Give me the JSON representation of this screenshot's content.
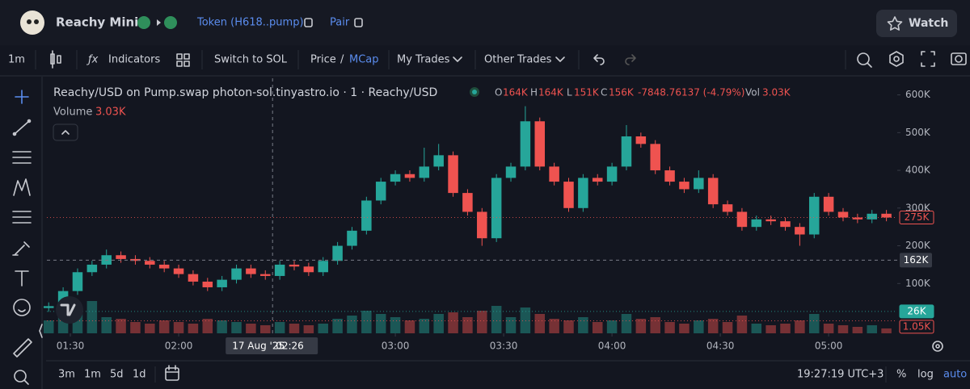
{
  "header": {
    "name": "Reachy Mini",
    "token": "Token (H618..pump)",
    "pair": "Pair",
    "watch": "Watch"
  },
  "toolbar": {
    "interval": "1m",
    "indicators": "Indicators",
    "switch": "Switch to SOL",
    "price": "Price",
    "slash": "/",
    "mcap": "MCap",
    "my_trades": "My Trades",
    "other_trades": "Other Trades"
  },
  "legend": {
    "title": "Reachy/USD on Pump.swap photon-sol.tinyastro.io · 1 · Reachy/USD",
    "o_label": "O",
    "o": "164K",
    "h_label": "H",
    "h": "164K",
    "l_label": "L",
    "l": "151K",
    "c_label": "C",
    "c": "156K",
    "change": "-7848.76137 (-4.79%)",
    "vol_label": "Vol",
    "vol": "3.03K",
    "volume_label": "Volume",
    "volume_value": "3.03K"
  },
  "footer": {
    "ranges": [
      "3m",
      "1m",
      "5d",
      "1d"
    ],
    "clock": "19:27:19 UTC+3",
    "percent": "%",
    "log": "log",
    "auto": "auto"
  },
  "chart_data": {
    "type": "candlestick",
    "up_color": "#26a69a",
    "down_color": "#ef5350",
    "x": [
      84,
      88,
      92,
      96,
      100,
      104,
      108,
      112,
      116,
      120,
      124,
      128,
      132,
      136,
      140,
      144,
      148,
      152,
      156,
      160,
      164,
      168,
      172,
      176,
      180,
      184,
      188,
      192,
      196,
      200,
      204,
      208,
      212,
      216,
      220,
      224,
      228,
      232,
      236,
      240,
      244,
      248,
      252,
      256,
      260,
      264,
      268,
      272,
      276,
      280,
      284,
      288,
      292,
      296,
      300,
      304,
      308,
      312,
      316
    ],
    "open": [
      35,
      40,
      80,
      130,
      150,
      175,
      165,
      160,
      150,
      140,
      125,
      105,
      90,
      110,
      140,
      125,
      120,
      150,
      145,
      130,
      160,
      200,
      240,
      320,
      370,
      390,
      380,
      410,
      440,
      340,
      290,
      220,
      380,
      410,
      530,
      410,
      370,
      300,
      380,
      370,
      410,
      490,
      470,
      400,
      370,
      350,
      380,
      310,
      290,
      250,
      270,
      265,
      250,
      230,
      330,
      290,
      275,
      270,
      285
    ],
    "high": [
      50,
      90,
      140,
      160,
      190,
      185,
      175,
      170,
      160,
      150,
      135,
      115,
      120,
      150,
      150,
      135,
      160,
      160,
      155,
      170,
      210,
      250,
      330,
      380,
      400,
      400,
      460,
      470,
      450,
      350,
      300,
      390,
      420,
      570,
      540,
      420,
      380,
      390,
      390,
      420,
      520,
      500,
      480,
      410,
      380,
      400,
      390,
      320,
      300,
      280,
      280,
      275,
      260,
      340,
      340,
      300,
      285,
      295,
      295
    ],
    "low": [
      25,
      30,
      70,
      120,
      140,
      155,
      150,
      140,
      130,
      115,
      95,
      80,
      80,
      100,
      115,
      110,
      110,
      135,
      120,
      120,
      150,
      190,
      230,
      310,
      360,
      370,
      370,
      400,
      330,
      280,
      200,
      210,
      370,
      400,
      400,
      360,
      290,
      290,
      360,
      360,
      400,
      460,
      390,
      360,
      340,
      340,
      300,
      280,
      240,
      240,
      255,
      240,
      200,
      220,
      280,
      265,
      260,
      260,
      265
    ],
    "close": [
      40,
      80,
      130,
      150,
      175,
      165,
      160,
      150,
      140,
      125,
      105,
      90,
      110,
      140,
      125,
      120,
      150,
      145,
      130,
      160,
      200,
      240,
      320,
      370,
      390,
      380,
      410,
      440,
      340,
      290,
      220,
      380,
      410,
      530,
      410,
      370,
      300,
      380,
      370,
      410,
      490,
      470,
      400,
      370,
      350,
      380,
      310,
      290,
      250,
      270,
      265,
      250,
      230,
      330,
      290,
      275,
      270,
      285,
      275
    ],
    "volume": [
      8,
      12,
      15,
      20,
      10,
      9,
      7,
      6,
      8,
      7,
      6,
      9,
      8,
      7,
      6,
      5,
      7,
      6,
      5,
      6,
      9,
      11,
      14,
      12,
      10,
      8,
      9,
      12,
      13,
      10,
      14,
      17,
      10,
      16,
      12,
      9,
      8,
      10,
      7,
      8,
      12,
      9,
      10,
      7,
      6,
      8,
      9,
      7,
      11,
      6,
      5,
      6,
      8,
      12,
      6,
      5,
      4,
      5,
      3.03
    ],
    "xlim": [
      83.5,
      319
    ],
    "xticks": [
      {
        "value": 90,
        "label": "01:30"
      },
      {
        "value": 120,
        "label": "02:00"
      },
      {
        "value": 180,
        "label": "03:00"
      },
      {
        "value": 210,
        "label": "03:30"
      },
      {
        "value": 240,
        "label": "04:00"
      },
      {
        "value": 270,
        "label": "04:30"
      },
      {
        "value": 300,
        "label": "05:00"
      }
    ],
    "ylim": [
      -32,
      644
    ],
    "yticks": [
      {
        "value": 100,
        "label": "100K"
      },
      {
        "value": 200,
        "label": "200K"
      },
      {
        "value": 300,
        "label": "300K"
      },
      {
        "value": 400,
        "label": "400K"
      },
      {
        "value": 500,
        "label": "500K"
      },
      {
        "value": 600,
        "label": "600K"
      }
    ],
    "y2lim": [
      0,
      30
    ],
    "grid": false,
    "price_markers": [
      {
        "value": 275,
        "label": "275K",
        "color": "#ef5350"
      },
      {
        "value": 26,
        "label": "26K",
        "color": "#26a69a"
      },
      {
        "value": 1.05,
        "label": "1.05K",
        "color": "#ef5350"
      }
    ],
    "crosshair": {
      "x": 146,
      "y": 162,
      "date_label": "17 Aug '25",
      "time_label": "02:26",
      "price_label": "162K"
    }
  }
}
